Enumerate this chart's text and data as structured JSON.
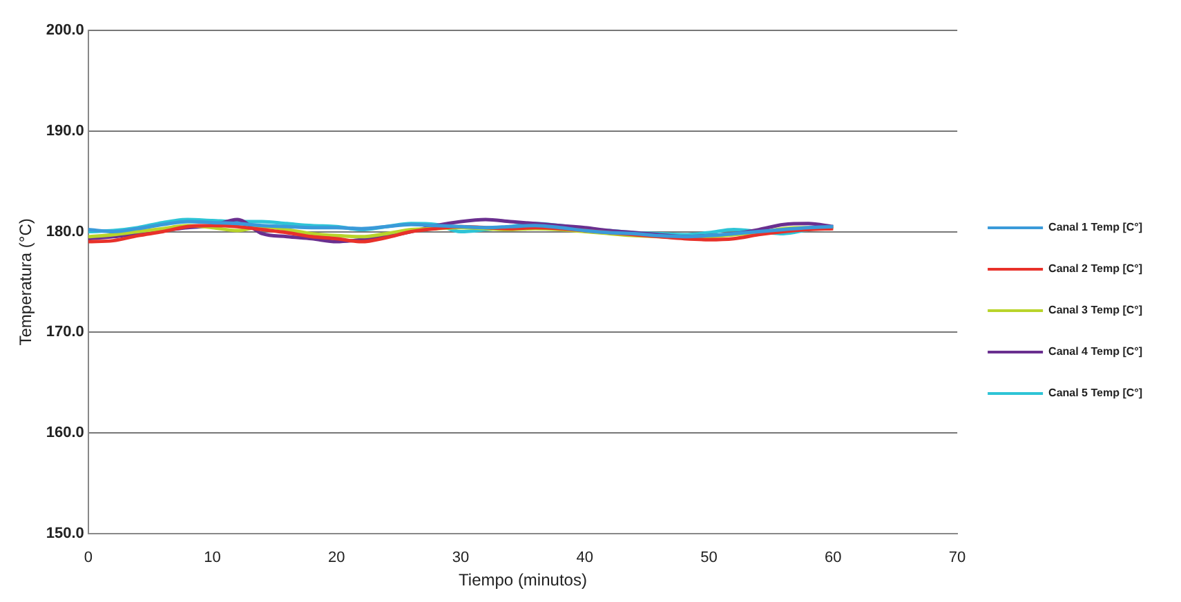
{
  "chart_data": {
    "type": "line",
    "xlabel": "Tiempo (minutos)",
    "ylabel": "Temperatura (°C)",
    "x": [
      0,
      2,
      4,
      6,
      8,
      10,
      12,
      14,
      16,
      18,
      20,
      22,
      24,
      26,
      28,
      30,
      32,
      34,
      36,
      38,
      40,
      42,
      44,
      46,
      48,
      50,
      52,
      54,
      56,
      58,
      60
    ],
    "series": [
      {
        "name": "Canal 1 Temp [C°]",
        "color": "#3a9ad9",
        "values": [
          180.2,
          180.0,
          180.3,
          180.7,
          181.0,
          180.9,
          180.8,
          180.6,
          180.5,
          180.4,
          180.4,
          180.3,
          180.5,
          180.7,
          180.6,
          180.5,
          180.4,
          180.5,
          180.6,
          180.4,
          180.1,
          179.9,
          179.8,
          179.6,
          179.5,
          179.6,
          179.8,
          180.0,
          180.2,
          180.4,
          180.5
        ]
      },
      {
        "name": "Canal 2 Temp [C°]",
        "color": "#e8312a",
        "values": [
          179.0,
          179.1,
          179.6,
          180.0,
          180.5,
          180.6,
          180.5,
          180.2,
          179.9,
          179.5,
          179.3,
          179.0,
          179.4,
          180.0,
          180.3,
          180.5,
          180.4,
          180.3,
          180.4,
          180.3,
          180.1,
          179.9,
          179.7,
          179.5,
          179.3,
          179.2,
          179.3,
          179.7,
          180.0,
          180.2,
          180.3
        ]
      },
      {
        "name": "Canal 3 Temp [C°]",
        "color": "#b9d42b",
        "values": [
          179.5,
          179.7,
          180.0,
          180.3,
          180.6,
          180.4,
          180.1,
          180.5,
          180.2,
          179.8,
          179.6,
          179.5,
          179.8,
          180.2,
          180.3,
          180.4,
          180.3,
          180.2,
          180.3,
          180.2,
          180.0,
          179.8,
          179.6,
          179.5,
          179.4,
          179.5,
          179.7,
          179.9,
          180.3,
          180.4,
          180.4
        ]
      },
      {
        "name": "Canal 4 Temp [C°]",
        "color": "#6a2f8f",
        "values": [
          179.3,
          179.5,
          179.8,
          180.1,
          180.4,
          180.6,
          181.2,
          179.8,
          179.5,
          179.3,
          179.0,
          179.2,
          179.5,
          180.0,
          180.6,
          181.0,
          181.2,
          181.0,
          180.8,
          180.6,
          180.4,
          180.1,
          179.9,
          179.7,
          179.5,
          179.6,
          179.8,
          180.2,
          180.7,
          180.8,
          180.5
        ]
      },
      {
        "name": "Canal 5 Temp [C°]",
        "color": "#2ec4d6",
        "values": [
          180.0,
          180.1,
          180.4,
          180.9,
          181.2,
          181.1,
          181.0,
          181.0,
          180.8,
          180.6,
          180.5,
          180.2,
          180.5,
          180.8,
          180.7,
          180.0,
          180.2,
          180.5,
          180.8,
          180.6,
          180.3,
          180.1,
          179.9,
          179.8,
          179.7,
          179.9,
          180.2,
          180.0,
          179.8,
          180.2,
          180.5
        ]
      }
    ],
    "xlim": [
      0,
      70
    ],
    "xticks": [
      0,
      10,
      20,
      30,
      40,
      50,
      60,
      70
    ],
    "ylim": [
      150,
      200
    ],
    "yticks": [
      {
        "value": 150,
        "label": "150.0"
      },
      {
        "value": 160,
        "label": "160.0"
      },
      {
        "value": 170,
        "label": "170.0"
      },
      {
        "value": 180,
        "label": "180.0"
      },
      {
        "value": 190,
        "label": "190.0"
      },
      {
        "value": 200,
        "label": "200.0"
      }
    ],
    "grid": "y",
    "legend": "right",
    "marker": "none",
    "line_style": "solid"
  }
}
